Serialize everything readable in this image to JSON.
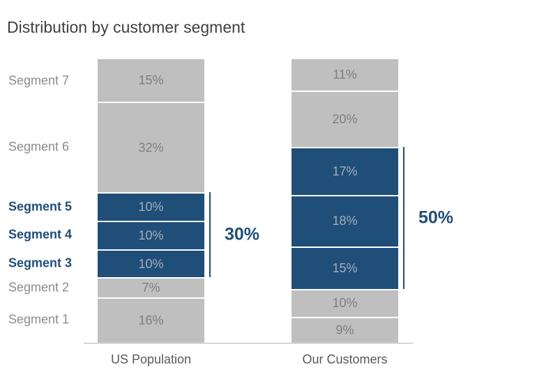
{
  "chart_data": {
    "type": "bar",
    "subtype": "stacked-percent-columns",
    "title": "Distribution by customer segment",
    "categories": [
      "US Population",
      "Our Customers"
    ],
    "value_suffix": "%",
    "segments": [
      {
        "name": "Segment 7",
        "highlight": false,
        "values": [
          15,
          11
        ]
      },
      {
        "name": "Segment 6",
        "highlight": false,
        "values": [
          32,
          20
        ]
      },
      {
        "name": "Segment 5",
        "highlight": true,
        "values": [
          10,
          17
        ]
      },
      {
        "name": "Segment 4",
        "highlight": true,
        "values": [
          10,
          18
        ]
      },
      {
        "name": "Segment 3",
        "highlight": true,
        "values": [
          10,
          15
        ]
      },
      {
        "name": "Segment 2",
        "highlight": false,
        "values": [
          7,
          10
        ]
      },
      {
        "name": "Segment 1",
        "highlight": false,
        "values": [
          16,
          9
        ]
      }
    ],
    "highlight_totals": [
      "30%",
      "50%"
    ],
    "ylim": [
      0,
      100
    ],
    "legend": "none",
    "grid": false
  },
  "colors": {
    "segment_gray": "#bfbfbf",
    "segment_blue": "#1f4e79",
    "gray_value_text": "#7f7f7f",
    "blue_value_text": "#a3adb9",
    "gray_label_text": "#8c8c8c",
    "highlight_label_text": "#1f4e79",
    "title_text": "#3f3f3f",
    "axis_label_text": "#595959",
    "axis_line": "#d6d6d6"
  }
}
